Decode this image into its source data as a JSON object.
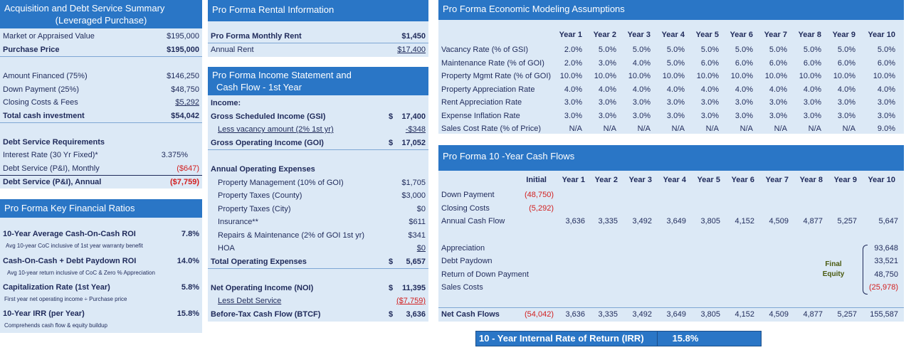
{
  "acq": {
    "title": "Acquisition and Debt Service Summary",
    "subtitle": "(Leveraged Purchase)",
    "rows": [
      {
        "label": "Market or Appraised Value",
        "value": "$195,000"
      },
      {
        "label": "Purchase Price",
        "value": "$195,000"
      },
      {
        "label": "Amount Financed (75%)",
        "value": "$146,250"
      },
      {
        "label": "Down Payment (25%)",
        "value": "$48,750"
      },
      {
        "label": "Closing Costs & Fees",
        "value": "$5,292"
      },
      {
        "label": "Total cash investment",
        "value": "$54,042"
      },
      {
        "label": "Debt Service Requirements",
        "value": ""
      },
      {
        "label": "Interest Rate (30 Yr Fixed)*",
        "value": "3.375%"
      },
      {
        "label": "Debt Service (P&I), Monthly",
        "value": "($647)"
      },
      {
        "label": "Debt Service (P&I), Annual",
        "value": "($7,759)"
      }
    ]
  },
  "ratios": {
    "title": "Pro Forma Key Financial Ratios",
    "items": [
      {
        "label": "10-Year Average Cash-On-Cash ROI",
        "value": "7.8%",
        "note": "Avg 10-year CoC inclusive of 1st year warranty benefit"
      },
      {
        "label": "Cash-On-Cash + Debt Paydown ROI",
        "value": "14.0%",
        "note": "Avg 10-year return inclusive of CoC & Zero % Appreciation"
      },
      {
        "label": "Capitalization Rate (1st Year)",
        "value": "5.8%",
        "note": "First year net operating income ÷ Purchase price"
      },
      {
        "label": "10-Year IRR (per Year)",
        "value": "15.8%",
        "note": "Comprehends cash flow & equity buildup"
      }
    ]
  },
  "rental": {
    "title": "Pro Forma Rental Information",
    "rows": [
      {
        "label": "Pro Forma Monthly Rent",
        "value": "$1,450"
      },
      {
        "label": "Annual Rent",
        "value": "$17,400"
      }
    ]
  },
  "income": {
    "title1": "Pro Forma Income Statement and",
    "title2": "Cash Flow - 1st Year",
    "rows": [
      {
        "label": "Income:",
        "dollar": "",
        "value": ""
      },
      {
        "label": "Gross Scheduled Income (GSI)",
        "dollar": "$",
        "value": "17,400"
      },
      {
        "label": "Less vacancy amount (2% 1st yr)",
        "dollar": "",
        "value": "-$348"
      },
      {
        "label": "Gross Operating Income (GOI)",
        "dollar": "$",
        "value": "17,052"
      },
      {
        "label": "Annual Operating Expenses",
        "dollar": "",
        "value": ""
      },
      {
        "label": "Property Management (10% of GOI)",
        "dollar": "",
        "value": "$1,705"
      },
      {
        "label": "Property Taxes (County)",
        "dollar": "",
        "value": "$3,000"
      },
      {
        "label": "Property Taxes (City)",
        "dollar": "",
        "value": "$0"
      },
      {
        "label": "Insurance**",
        "dollar": "",
        "value": "$611"
      },
      {
        "label": "Repairs & Maintenance (2% of GOI 1st yr)",
        "dollar": "",
        "value": "$341"
      },
      {
        "label": "HOA",
        "dollar": "",
        "value": "$0"
      },
      {
        "label": "Total Operating Expenses",
        "dollar": "$",
        "value": "5,657"
      },
      {
        "label": "Net Operating Income (NOI)",
        "dollar": "$",
        "value": "11,395"
      },
      {
        "label": "Less Debt Service",
        "dollar": "",
        "value": "($7,759)"
      },
      {
        "label": "Before-Tax Cash Flow (BTCF)",
        "dollar": "$",
        "value": "3,636"
      }
    ]
  },
  "assumptions": {
    "title": "Pro Forma Economic Modeling Assumptions",
    "years": [
      "Year 1",
      "Year 2",
      "Year 3",
      "Year 4",
      "Year 5",
      "Year 6",
      "Year 7",
      "Year 8",
      "Year 9",
      "Year 10"
    ],
    "rows": [
      {
        "label": "Vacancy Rate (% of GSI)",
        "values": [
          "2.0%",
          "5.0%",
          "5.0%",
          "5.0%",
          "5.0%",
          "5.0%",
          "5.0%",
          "5.0%",
          "5.0%",
          "5.0%"
        ]
      },
      {
        "label": "Maintenance Rate (% of GOI)",
        "values": [
          "2.0%",
          "3.0%",
          "4.0%",
          "5.0%",
          "6.0%",
          "6.0%",
          "6.0%",
          "6.0%",
          "6.0%",
          "6.0%"
        ]
      },
      {
        "label": "Property Mgmt Rate (% of GOI)",
        "values": [
          "10.0%",
          "10.0%",
          "10.0%",
          "10.0%",
          "10.0%",
          "10.0%",
          "10.0%",
          "10.0%",
          "10.0%",
          "10.0%"
        ]
      },
      {
        "label": "Property Appreciation Rate",
        "values": [
          "4.0%",
          "4.0%",
          "4.0%",
          "4.0%",
          "4.0%",
          "4.0%",
          "4.0%",
          "4.0%",
          "4.0%",
          "4.0%"
        ]
      },
      {
        "label": "Rent Appreciation Rate",
        "values": [
          "3.0%",
          "3.0%",
          "3.0%",
          "3.0%",
          "3.0%",
          "3.0%",
          "3.0%",
          "3.0%",
          "3.0%",
          "3.0%"
        ]
      },
      {
        "label": "Expense Inflation Rate",
        "values": [
          "3.0%",
          "3.0%",
          "3.0%",
          "3.0%",
          "3.0%",
          "3.0%",
          "3.0%",
          "3.0%",
          "3.0%",
          "3.0%"
        ]
      },
      {
        "label": "Sales Cost Rate (% of Price)",
        "values": [
          "N/A",
          "N/A",
          "N/A",
          "N/A",
          "N/A",
          "N/A",
          "N/A",
          "N/A",
          "N/A",
          "9.0%"
        ]
      }
    ]
  },
  "cashflows": {
    "title": "Pro Forma 10 -Year Cash Flows",
    "initial_label": "Initial",
    "years": [
      "Year 1",
      "Year 2",
      "Year 3",
      "Year 4",
      "Year 5",
      "Year 6",
      "Year 7",
      "Year 8",
      "Year 9",
      "Year 10"
    ],
    "down_payment": {
      "label": "Down Payment",
      "initial": "(48,750)"
    },
    "closing_costs": {
      "label": "Closing Costs",
      "initial": "(5,292)"
    },
    "annual_cash_flow": {
      "label": "Annual Cash Flow",
      "values": [
        "3,636",
        "3,335",
        "3,492",
        "3,649",
        "3,805",
        "4,152",
        "4,509",
        "4,877",
        "5,257",
        "5,647"
      ]
    },
    "appreciation": {
      "label": "Appreciation",
      "value": "93,648"
    },
    "debt_paydown": {
      "label": "Debt Paydown",
      "value": "33,521"
    },
    "return_down": {
      "label": "Return of Down Payment",
      "value": "48,750"
    },
    "sales_costs": {
      "label": "Sales Costs",
      "value": "(25,978)"
    },
    "final_equity_1": "Final",
    "final_equity_2": "Equity",
    "net": {
      "label": "Net Cash Flows",
      "initial": "(54,042)",
      "values": [
        "3,636",
        "3,335",
        "3,492",
        "3,649",
        "3,805",
        "4,152",
        "4,509",
        "4,877",
        "5,257",
        "155,587"
      ]
    }
  },
  "irr": {
    "label": "10 - Year Internal Rate of Return (IRR)",
    "value": "15.8%"
  },
  "colors": {
    "header": "#2a76c6",
    "panel": "#dce9f6",
    "negative": "#d21f1f",
    "text": "#1f2a5a",
    "equity": "#4a5a10"
  }
}
